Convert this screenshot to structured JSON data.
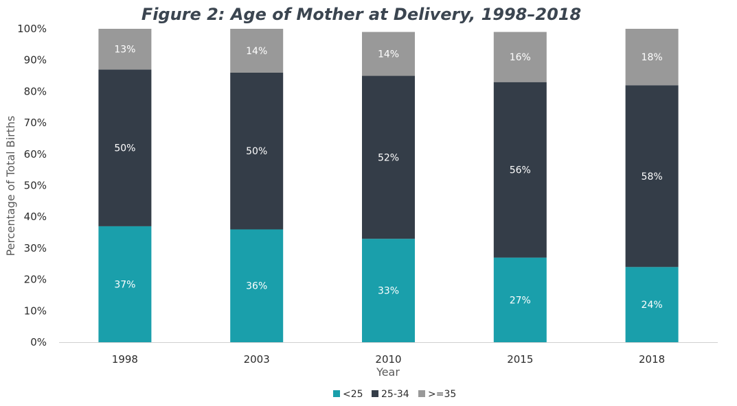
{
  "chart_data": {
    "type": "bar",
    "stacked": true,
    "title": "Figure 2: Age of Mother at Delivery, 1998–2018",
    "xlabel": "Year",
    "ylabel": "Percentage of Total Births",
    "categories": [
      "1998",
      "2003",
      "2010",
      "2015",
      "2018"
    ],
    "ylim": [
      0,
      100
    ],
    "yticks": [
      0,
      10,
      20,
      30,
      40,
      50,
      60,
      70,
      80,
      90,
      100
    ],
    "ytick_labels": [
      "0%",
      "10%",
      "20%",
      "30%",
      "40%",
      "50%",
      "60%",
      "70%",
      "80%",
      "90%",
      "100%"
    ],
    "grid": false,
    "legend_position": "bottom-center",
    "series": [
      {
        "name": "<25",
        "color": "#1a9fab",
        "label_color": "#ffffff",
        "values": [
          37,
          36,
          33,
          27,
          24
        ],
        "labels": [
          "37%",
          "36%",
          "33%",
          "27%",
          "24%"
        ]
      },
      {
        "name": "25-34",
        "color": "#343d48",
        "label_color": "#ffffff",
        "values": [
          50,
          50,
          52,
          56,
          58
        ],
        "labels": [
          "50%",
          "50%",
          "52%",
          "56%",
          "58%"
        ]
      },
      {
        "name": ">=35",
        "color": "#999999",
        "label_color": "#ffffff",
        "values": [
          13,
          14,
          14,
          16,
          18
        ],
        "labels": [
          "13%",
          "14%",
          "14%",
          "16%",
          "18%"
        ]
      }
    ]
  }
}
